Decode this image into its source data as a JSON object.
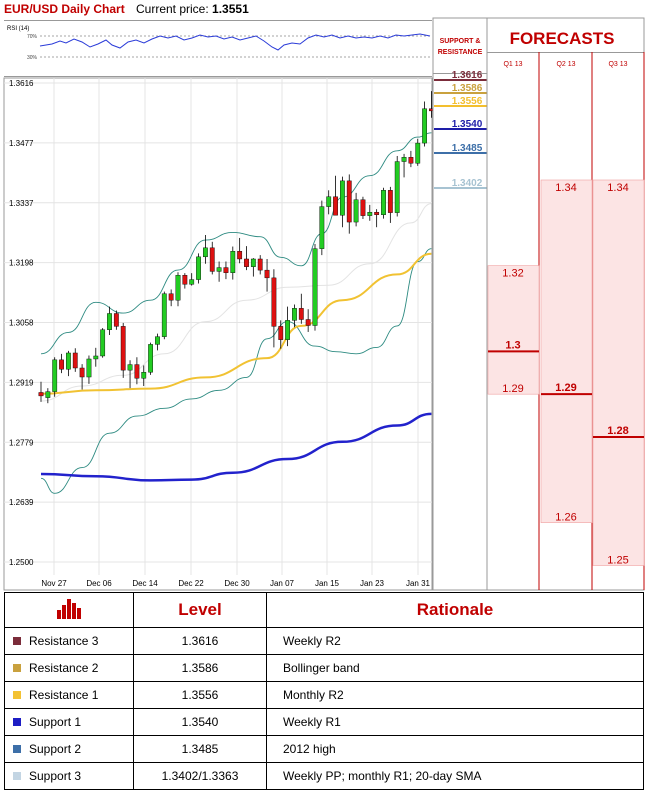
{
  "header": {
    "title": "EUR/USD Daily Chart",
    "price_label": "Current price:",
    "price": "1.3551"
  },
  "rsi": {
    "label": "RSI (14)",
    "upper": "70%",
    "lower": "30%"
  },
  "chart_data": [
    {
      "type": "candlestick",
      "title": "EUR/USD Daily Chart",
      "ylim": [
        1.25,
        1.3616
      ],
      "yticks": [
        "1.3616",
        "1.3477",
        "1.3337",
        "1.3198",
        "1.3058",
        "1.2919",
        "1.2779",
        "1.2639",
        "1.2500"
      ],
      "xticks": [
        "Nov 27",
        "Dec 06",
        "Dec 14",
        "Dec 22",
        "Dec 30",
        "Jan 07",
        "Jan 15",
        "Jan 23",
        "Jan 31"
      ],
      "candles": [
        [
          1.2895,
          1.292,
          1.2873,
          1.2887
        ],
        [
          1.2883,
          1.2905,
          1.287,
          1.2897
        ],
        [
          1.2897,
          1.2977,
          1.2885,
          1.2971
        ],
        [
          1.2971,
          1.2985,
          1.294,
          1.2949
        ],
        [
          1.2949,
          1.2992,
          1.2933,
          1.2987
        ],
        [
          1.2987,
          1.2998,
          1.2943,
          1.2952
        ],
        [
          1.2952,
          1.2961,
          1.2902,
          1.2931
        ],
        [
          1.2931,
          1.2981,
          1.2915,
          1.2973
        ],
        [
          1.2973,
          1.2999,
          1.2955,
          1.298
        ],
        [
          1.298,
          1.3045,
          1.2976,
          1.3041
        ],
        [
          1.3041,
          1.3095,
          1.3029,
          1.3079
        ],
        [
          1.3079,
          1.3086,
          1.3041,
          1.3049
        ],
        [
          1.3049,
          1.3057,
          1.2929,
          1.2947
        ],
        [
          1.2947,
          1.297,
          1.2905,
          1.296
        ],
        [
          1.296,
          1.2977,
          1.2914,
          1.2928
        ],
        [
          1.2928,
          1.2958,
          1.291,
          1.2942
        ],
        [
          1.2942,
          1.3011,
          1.2936,
          1.3007
        ],
        [
          1.3007,
          1.3032,
          1.2993,
          1.3025
        ],
        [
          1.3025,
          1.313,
          1.3019,
          1.3125
        ],
        [
          1.3125,
          1.3135,
          1.3096,
          1.311
        ],
        [
          1.311,
          1.3175,
          1.3096,
          1.3168
        ],
        [
          1.3168,
          1.3173,
          1.3137,
          1.3147
        ],
        [
          1.3147,
          1.3173,
          1.3144,
          1.3158
        ],
        [
          1.3158,
          1.3219,
          1.3149,
          1.3211
        ],
        [
          1.3211,
          1.3262,
          1.3195,
          1.3232
        ],
        [
          1.3232,
          1.3246,
          1.317,
          1.3177
        ],
        [
          1.3177,
          1.32,
          1.3153,
          1.3186
        ],
        [
          1.3186,
          1.32,
          1.3159,
          1.3174
        ],
        [
          1.3174,
          1.3235,
          1.3158,
          1.3224
        ],
        [
          1.3224,
          1.3255,
          1.3196,
          1.3206
        ],
        [
          1.3206,
          1.3236,
          1.318,
          1.3188
        ],
        [
          1.3188,
          1.3208,
          1.3165,
          1.3206
        ],
        [
          1.3206,
          1.3215,
          1.317,
          1.318
        ],
        [
          1.318,
          1.3206,
          1.313,
          1.3162
        ],
        [
          1.3162,
          1.3182,
          1.3,
          1.3049
        ],
        [
          1.3049,
          1.3063,
          1.2997,
          1.3018
        ],
        [
          1.3018,
          1.3095,
          1.3003,
          1.3063
        ],
        [
          1.3063,
          1.31,
          1.3047,
          1.3091
        ],
        [
          1.3091,
          1.3125,
          1.3055,
          1.3065
        ],
        [
          1.3065,
          1.3089,
          1.3036,
          1.3051
        ],
        [
          1.3051,
          1.3241,
          1.3039,
          1.323
        ],
        [
          1.323,
          1.3342,
          1.3215,
          1.3328
        ],
        [
          1.3328,
          1.3366,
          1.331,
          1.3351
        ],
        [
          1.3351,
          1.34,
          1.3313,
          1.3308
        ],
        [
          1.3308,
          1.3398,
          1.328,
          1.3388
        ],
        [
          1.3388,
          1.3403,
          1.3265,
          1.3292
        ],
        [
          1.3292,
          1.336,
          1.3282,
          1.3344
        ],
        [
          1.3344,
          1.3351,
          1.3299,
          1.3307
        ],
        [
          1.3307,
          1.3332,
          1.3295,
          1.3315
        ],
        [
          1.3315,
          1.3322,
          1.328,
          1.3309
        ],
        [
          1.3309,
          1.3372,
          1.33,
          1.3366
        ],
        [
          1.3366,
          1.3374,
          1.329,
          1.3314
        ],
        [
          1.3314,
          1.3446,
          1.3305,
          1.3433
        ],
        [
          1.3433,
          1.3451,
          1.3396,
          1.3443
        ],
        [
          1.3443,
          1.3458,
          1.342,
          1.3429
        ],
        [
          1.3429,
          1.3486,
          1.3423,
          1.3476
        ],
        [
          1.3476,
          1.3573,
          1.3468,
          1.3556
        ],
        [
          1.3556,
          1.3597,
          1.3535,
          1.3551
        ]
      ],
      "indicators": {
        "sma_fast": [
          [
            0,
            1.2892
          ],
          [
            8,
            1.29
          ],
          [
            16,
            1.2904
          ],
          [
            24,
            1.293
          ],
          [
            33,
            1.2975
          ],
          [
            38,
            1.305
          ],
          [
            44,
            1.311
          ],
          [
            52,
            1.317
          ],
          [
            57,
            1.3218
          ]
        ],
        "sma_slow": [
          [
            0,
            1.2705
          ],
          [
            8,
            1.27
          ],
          [
            16,
            1.269
          ],
          [
            22,
            1.2692
          ],
          [
            28,
            1.2708
          ],
          [
            36,
            1.274
          ],
          [
            44,
            1.278
          ],
          [
            52,
            1.2818
          ],
          [
            57,
            1.2845
          ]
        ],
        "bb_upper": [
          [
            0,
            1.2985
          ],
          [
            4,
            1.3035
          ],
          [
            8,
            1.3105
          ],
          [
            12,
            1.308
          ],
          [
            16,
            1.311
          ],
          [
            20,
            1.318
          ],
          [
            24,
            1.325
          ],
          [
            28,
            1.3268
          ],
          [
            32,
            1.3258
          ],
          [
            35,
            1.321
          ],
          [
            38,
            1.319
          ],
          [
            41,
            1.3265
          ],
          [
            44,
            1.335
          ],
          [
            48,
            1.34
          ],
          [
            52,
            1.3458
          ],
          [
            55,
            1.349
          ],
          [
            57,
            1.35
          ]
        ],
        "bb_lower": [
          [
            0,
            1.2695
          ],
          [
            2,
            1.266
          ],
          [
            6,
            1.272
          ],
          [
            10,
            1.28
          ],
          [
            14,
            1.284
          ],
          [
            18,
            1.2858
          ],
          [
            22,
            1.288
          ],
          [
            26,
            1.29
          ],
          [
            30,
            1.293
          ],
          [
            33,
            1.302
          ],
          [
            36,
            1.306
          ],
          [
            40,
            1.3003
          ],
          [
            43,
            1.299
          ],
          [
            46,
            1.2985
          ],
          [
            49,
            1.3
          ],
          [
            52,
            1.305
          ],
          [
            55,
            1.32
          ],
          [
            57,
            1.323
          ]
        ],
        "bb_mid": [
          [
            0,
            1.2875
          ],
          [
            6,
            1.291
          ],
          [
            12,
            1.2935
          ],
          [
            18,
            1.2985
          ],
          [
            24,
            1.306
          ],
          [
            30,
            1.311
          ],
          [
            36,
            1.314
          ],
          [
            42,
            1.3145
          ],
          [
            48,
            1.3195
          ],
          [
            54,
            1.329
          ],
          [
            57,
            1.3335
          ]
        ]
      },
      "levels": [
        {
          "value": 1.3616,
          "label": "1.3616",
          "color": "#7b2c3a"
        },
        {
          "value": 1.3586,
          "label": "1.3586",
          "color": "#c9a13e"
        },
        {
          "value": 1.3556,
          "label": "1.3556",
          "color": "#f3bf2e"
        },
        {
          "value": 1.354,
          "label": "1.3540",
          "color": "#1e1ea8"
        },
        {
          "value": 1.3485,
          "label": "1.3485",
          "color": "#3d6fa8"
        },
        {
          "value": 1.3402,
          "label": "1.3402",
          "color": "#a7c3d2"
        }
      ],
      "colors": {
        "up": "#22cc22",
        "down": "#dd1111",
        "sma_fast": "#f1c232",
        "sma_slow": "#2222cc",
        "bands": "#2e8b82"
      }
    },
    {
      "type": "bar",
      "title": "FORECASTS",
      "categories": [
        "Q1 13",
        "Q2 13",
        "Q3 13"
      ],
      "ranges": [
        [
          1.29,
          1.32
        ],
        [
          1.26,
          1.34
        ],
        [
          1.25,
          1.34
        ]
      ],
      "targets": [
        1.3,
        1.29,
        1.28
      ],
      "labels": [
        {
          "top": "1.32",
          "target": "1.3",
          "bottom": "1.29"
        },
        {
          "top": "1.34",
          "target": "1.29",
          "bottom": "1.26"
        },
        {
          "top": "1.34",
          "target": "1.28",
          "bottom": "1.25"
        }
      ],
      "colors": {
        "fill": "#fce4e4",
        "border": "#c00000",
        "text": "#c00000"
      }
    }
  ],
  "support_resistance_label": [
    "SUPPORT &",
    "RESISTANCE"
  ],
  "table": {
    "headers": {
      "level": "Level",
      "rationale": "Rationale"
    },
    "rows": [
      {
        "label": "Resistance 3",
        "level": "1.3616",
        "rationale": "Weekly R2",
        "color": "#7b2c3a"
      },
      {
        "label": "Resistance 2",
        "level": "1.3586",
        "rationale": "Bollinger band",
        "color": "#c9a13e"
      },
      {
        "label": "Resistance 1",
        "level": "1.3556",
        "rationale": "Monthly R2",
        "color": "#f3c233"
      },
      {
        "label": "Support 1",
        "level": "1.3540",
        "rationale": "Weekly R1",
        "color": "#1d1dc4"
      },
      {
        "label": "Support 2",
        "level": "1.3485",
        "rationale": "2012 high",
        "color": "#3d6fa8"
      },
      {
        "label": "Support 3",
        "level": "1.3402/1.3363",
        "rationale": "Weekly PP; monthly R1; 20-day SMA",
        "color": "#c3d5e3"
      }
    ]
  }
}
